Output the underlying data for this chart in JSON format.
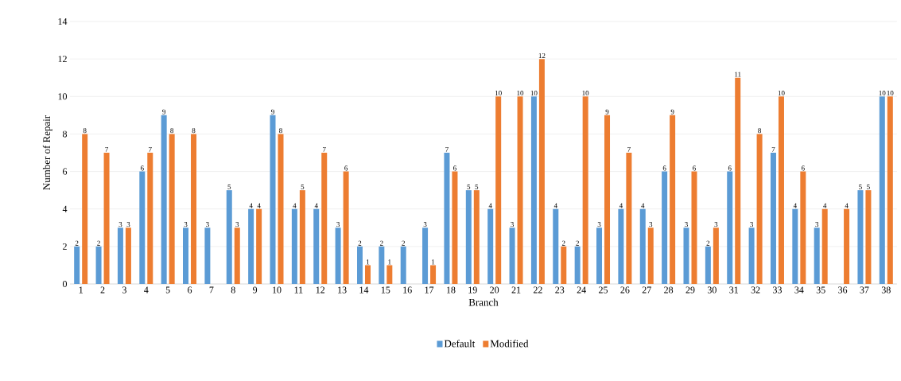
{
  "chart_data": {
    "type": "bar",
    "xlabel": "Branch",
    "ylabel": "Number of Repair",
    "categories": [
      "1",
      "2",
      "3",
      "4",
      "5",
      "6",
      "7",
      "8",
      "9",
      "10",
      "11",
      "12",
      "13",
      "14",
      "15",
      "16",
      "17",
      "18",
      "19",
      "20",
      "21",
      "22",
      "23",
      "24",
      "25",
      "26",
      "27",
      "28",
      "29",
      "30",
      "31",
      "32",
      "33",
      "34",
      "35",
      "36",
      "37",
      "38"
    ],
    "series": [
      {
        "name": "Default",
        "color": "#5b9bd5",
        "values": [
          2,
          2,
          3,
          6,
          9,
          3,
          3,
          5,
          4,
          9,
          4,
          4,
          3,
          2,
          2,
          2,
          3,
          7,
          5,
          4,
          3,
          10,
          4,
          2,
          3,
          4,
          4,
          6,
          3,
          2,
          6,
          3,
          7,
          4,
          3,
          null,
          5,
          10
        ]
      },
      {
        "name": "Modified",
        "color": "#ed7d31",
        "values": [
          8,
          7,
          3,
          7,
          8,
          8,
          null,
          3,
          4,
          8,
          5,
          7,
          6,
          1,
          1,
          null,
          1,
          6,
          5,
          10,
          10,
          12,
          2,
          10,
          9,
          7,
          3,
          9,
          6,
          3,
          11,
          8,
          10,
          6,
          4,
          4,
          5,
          10
        ]
      }
    ],
    "ylim": [
      0,
      14
    ],
    "yticks": [
      0,
      2,
      4,
      6,
      8,
      10,
      12,
      14
    ],
    "grid": "y",
    "legend": "bottom",
    "data_labels": true
  }
}
